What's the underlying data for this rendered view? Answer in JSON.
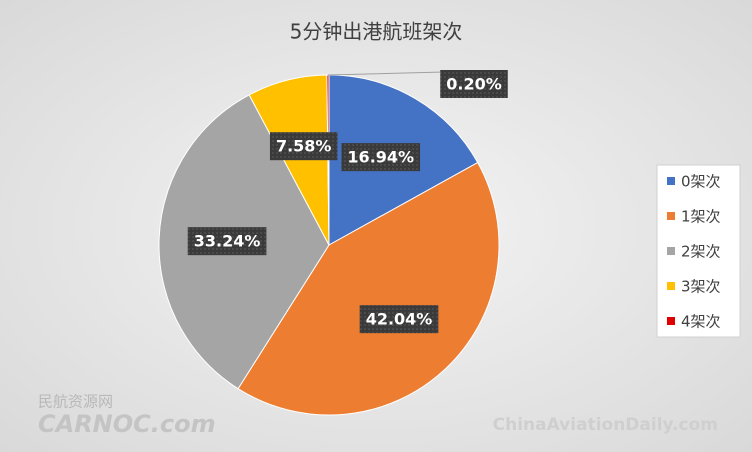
{
  "chart_data": {
    "type": "pie",
    "title": "5分钟出港航班架次",
    "categories": [
      "0架次",
      "1架次",
      "2架次",
      "3架次",
      "4架次"
    ],
    "values": [
      16.94,
      42.04,
      33.24,
      7.58,
      0.2
    ],
    "value_labels": [
      "16.94%",
      "42.04%",
      "33.24%",
      "7.58%",
      "0.20%"
    ],
    "colors": [
      "#4472c4",
      "#ed7d31",
      "#a5a5a5",
      "#ffc000",
      "#e00000"
    ],
    "legend": "right"
  },
  "watermarks": [
    "民航资源网",
    "CARNOC.com",
    "ChinaAviationDaily.com"
  ]
}
